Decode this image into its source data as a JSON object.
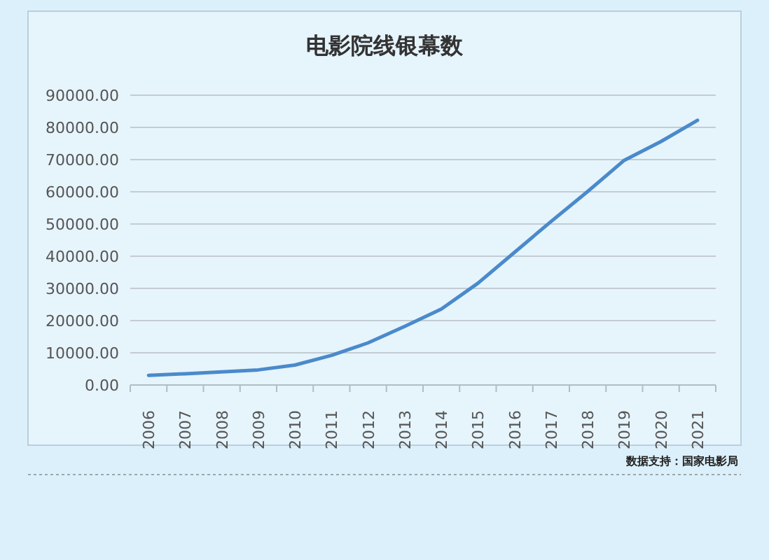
{
  "chart_data": {
    "type": "line",
    "title": "电影院线银幕数",
    "categories": [
      "2006",
      "2007",
      "2008",
      "2009",
      "2010",
      "2011",
      "2012",
      "2013",
      "2014",
      "2015",
      "2016",
      "2017",
      "2018",
      "2019",
      "2020",
      "2021"
    ],
    "series": [
      {
        "color": "#4a8acb",
        "values": [
          3000,
          3500,
          4100,
          4700,
          6200,
          9200,
          13100,
          18200,
          23600,
          31600,
          41200,
          50800,
          60100,
          69800,
          75600,
          82200
        ]
      }
    ],
    "ylim": [
      0,
      90000
    ],
    "yticks": [
      {
        "value": 0,
        "label": "0.00"
      },
      {
        "value": 10000,
        "label": "10000.00"
      },
      {
        "value": 20000,
        "label": "20000.00"
      },
      {
        "value": 30000,
        "label": "30000.00"
      },
      {
        "value": 40000,
        "label": "40000.00"
      },
      {
        "value": 50000,
        "label": "50000.00"
      },
      {
        "value": 60000,
        "label": "60000.00"
      },
      {
        "value": 70000,
        "label": "70000.00"
      },
      {
        "value": 80000,
        "label": "80000.00"
      },
      {
        "value": 90000,
        "label": "90000.00"
      }
    ],
    "grid": "y",
    "marker": "none",
    "line_style": "solid",
    "annotations": [
      "数据支持：国家电影局"
    ]
  }
}
